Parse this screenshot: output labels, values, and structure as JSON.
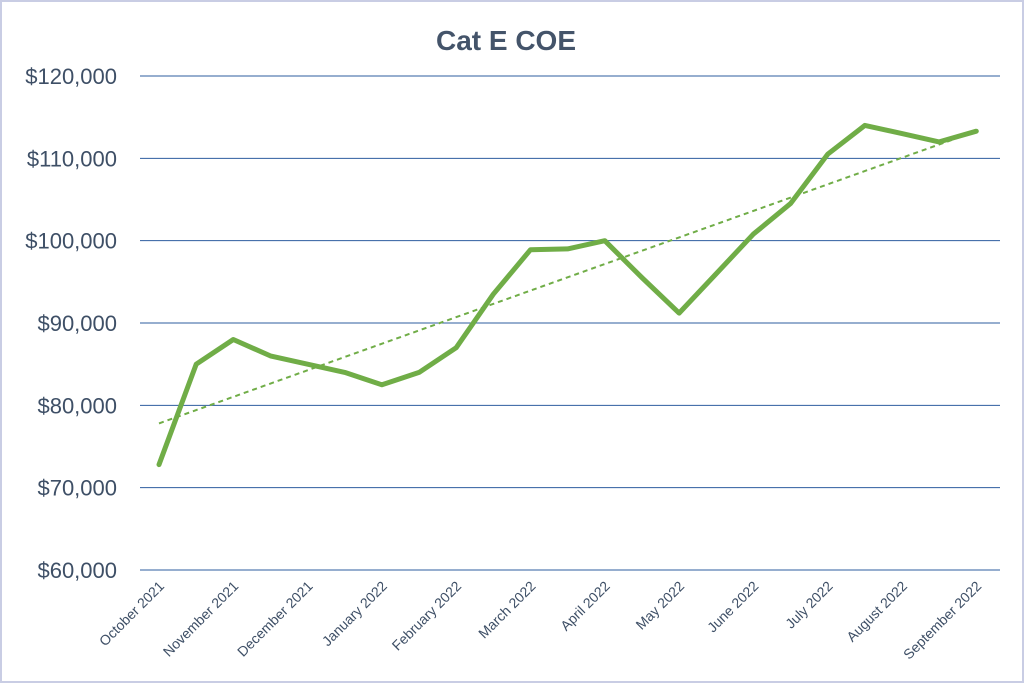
{
  "chart_data": {
    "type": "line",
    "title": "Cat E COE",
    "xlabel": "",
    "ylabel": "",
    "ylim": [
      60000,
      120000
    ],
    "y_ticks": [
      {
        "value": 120000,
        "label": "$120,000"
      },
      {
        "value": 110000,
        "label": "$110,000"
      },
      {
        "value": 100000,
        "label": "$100,000"
      },
      {
        "value": 90000,
        "label": "$90,000"
      },
      {
        "value": 80000,
        "label": "$80,000"
      },
      {
        "value": 70000,
        "label": "$70,000"
      },
      {
        "value": 60000,
        "label": "$60,000"
      }
    ],
    "categories": [
      "October 2021",
      "November 2021",
      "December 2021",
      "January 2022",
      "February 2022",
      "March 2022",
      "April 2022",
      "May 2022",
      "June 2022",
      "July 2022",
      "August 2022",
      "September 2022"
    ],
    "x": [
      0,
      0.5,
      1,
      1.5,
      2,
      2.5,
      3,
      3.5,
      4,
      4.5,
      5,
      5.5,
      6,
      6.5,
      7,
      7.5,
      8,
      8.5,
      9,
      9.5,
      10,
      10.5,
      11
    ],
    "series": [
      {
        "values": [
          72800,
          85000,
          88000,
          86000,
          85000,
          84000,
          82500,
          84000,
          87000,
          93500,
          98900,
          99000,
          100000,
          95500,
          91200,
          96000,
          100800,
          104500,
          110500,
          114000,
          113000,
          112000,
          113300
        ],
        "color": "#70ad47",
        "style": "solid"
      },
      {
        "values": [
          77800,
          113300
        ],
        "x": [
          0,
          11
        ],
        "color": "#70ad47",
        "style": "dashed",
        "kind": "linear-trendline"
      }
    ],
    "grid": true,
    "legend": "none"
  }
}
